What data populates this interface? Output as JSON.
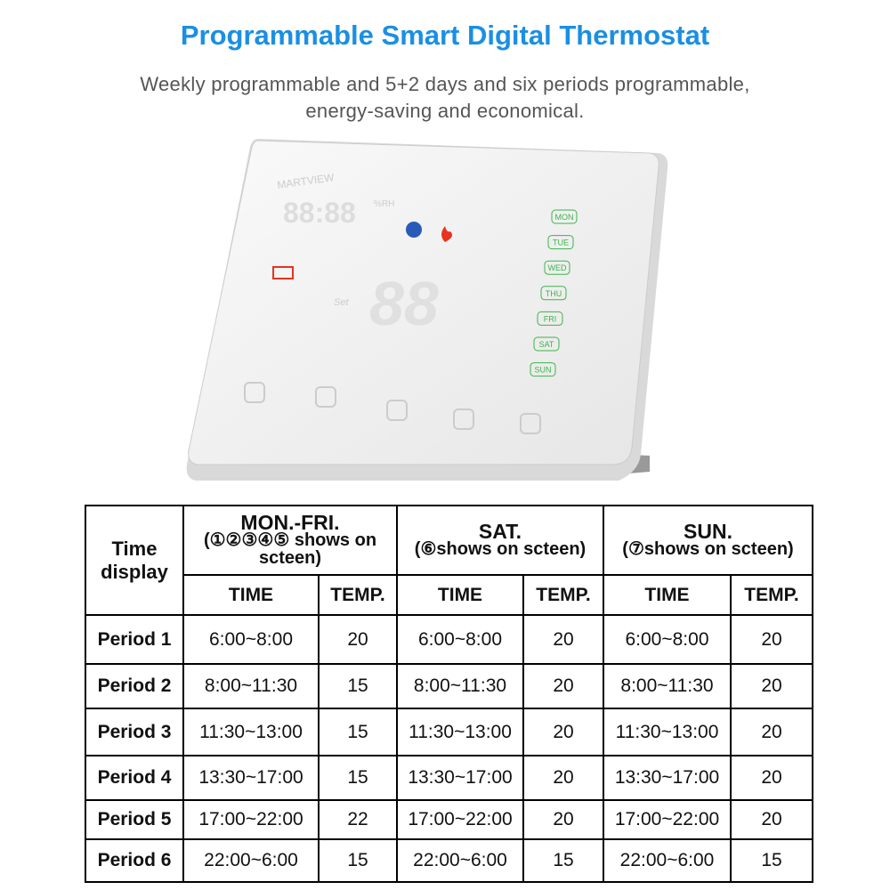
{
  "header": {
    "title": "Programmable Smart Digital Thermostat",
    "subtitle_lines": [
      "Weekly programmable and 5+2 days and six periods programmable,",
      "energy-saving and economical."
    ]
  },
  "device": {
    "brand": "MARTVIEW",
    "clock": "88:88",
    "humidity_unit": "%RH",
    "set_label": "Set",
    "days": [
      "MON",
      "TUE",
      "WED",
      "THU",
      "FRI",
      "SAT",
      "SUN"
    ]
  },
  "table": {
    "corner": "Time display",
    "groups": [
      {
        "name": "MON.-FRI.",
        "note": "(①②③④⑤ shows on scteen)"
      },
      {
        "name": "SAT.",
        "note": "(⑥shows on scteen)"
      },
      {
        "name": "SUN.",
        "note": "(⑦shows on scteen)"
      }
    ],
    "subheaders": [
      "TIME",
      "TEMP.",
      "TIME",
      "TEMP.",
      "TIME",
      "TEMP."
    ],
    "rows": [
      [
        "Period 1",
        "6:00~8:00",
        20,
        "6:00~8:00",
        20,
        "6:00~8:00",
        20
      ],
      [
        "Period 2",
        "8:00~11:30",
        15,
        "8:00~11:30",
        20,
        "8:00~11:30",
        20
      ],
      [
        "Period 3",
        "11:30~13:00",
        15,
        "11:30~13:00",
        20,
        "11:30~13:00",
        20
      ],
      [
        "Period 4",
        "13:30~17:00",
        15,
        "13:30~17:00",
        20,
        "13:30~17:00",
        20
      ],
      [
        "Period 5",
        "17:00~22:00",
        22,
        "17:00~22:00",
        20,
        "17:00~22:00",
        20
      ],
      [
        "Period 6",
        "22:00~6:00",
        15,
        "22:00~6:00",
        15,
        "22:00~6:00",
        15
      ]
    ]
  }
}
